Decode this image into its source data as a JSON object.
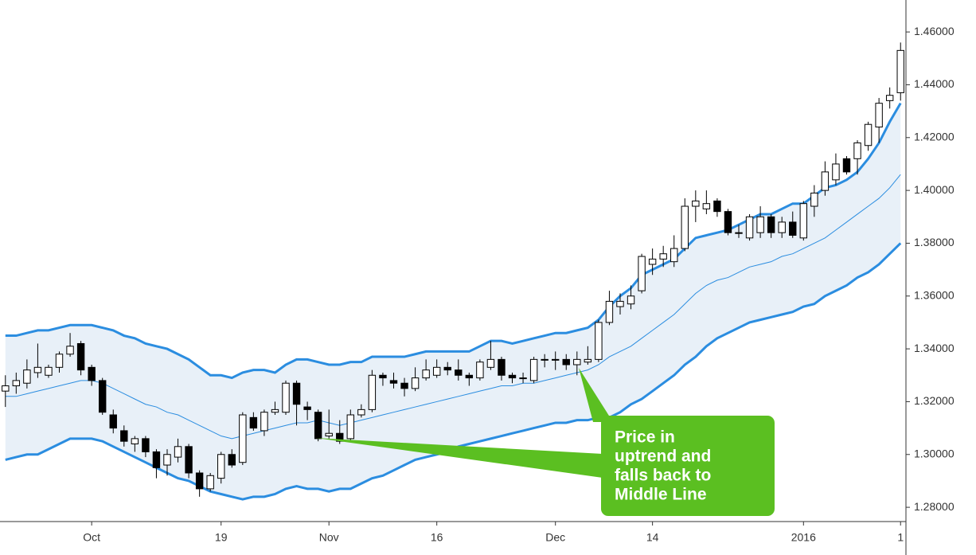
{
  "chart_data": {
    "type": "candlestick",
    "categories": [
      null,
      null,
      null,
      null,
      null,
      null,
      null,
      null,
      "Oct",
      null,
      null,
      null,
      null,
      null,
      null,
      null,
      null,
      null,
      null,
      null,
      "19",
      null,
      null,
      null,
      null,
      null,
      null,
      null,
      null,
      null,
      "Nov",
      null,
      null,
      null,
      null,
      null,
      null,
      null,
      null,
      null,
      "16",
      null,
      null,
      null,
      null,
      null,
      null,
      null,
      null,
      null,
      null,
      "Dec",
      null,
      null,
      null,
      null,
      null,
      null,
      null,
      null,
      "14",
      null,
      null,
      null,
      null,
      null,
      null,
      null,
      null,
      null,
      null,
      null,
      null,
      null,
      "2016",
      null,
      null,
      null,
      null,
      null,
      null,
      null,
      null,
      "1"
    ],
    "candles": {
      "open": [
        1.324,
        1.326,
        1.327,
        1.331,
        1.33,
        1.333,
        1.338,
        1.342,
        1.333,
        1.328,
        1.315,
        1.309,
        1.304,
        1.306,
        1.301,
        1.296,
        1.299,
        1.303,
        1.293,
        1.287,
        1.291,
        1.3,
        1.297,
        1.314,
        1.309,
        1.316,
        1.316,
        1.327,
        1.318,
        1.316,
        1.307,
        1.308,
        1.306,
        1.315,
        1.317,
        1.33,
        1.328,
        1.327,
        1.325,
        1.329,
        1.33,
        1.333,
        1.332,
        1.33,
        1.329,
        1.333,
        1.336,
        1.33,
        1.329,
        1.328,
        1.336,
        1.336,
        1.336,
        1.334,
        1.335,
        1.336,
        1.35,
        1.356,
        1.357,
        1.362,
        1.372,
        1.374,
        1.373,
        1.378,
        1.394,
        1.393,
        1.396,
        1.392,
        1.384,
        1.382,
        1.384,
        1.39,
        1.384,
        1.388,
        1.382,
        1.394,
        1.4,
        1.404,
        1.412,
        1.412,
        1.417,
        1.424,
        1.434,
        1.437
      ],
      "high": [
        1.33,
        1.331,
        1.336,
        1.342,
        1.334,
        1.339,
        1.346,
        1.343,
        1.334,
        1.329,
        1.317,
        1.311,
        1.307,
        1.307,
        1.302,
        1.302,
        1.306,
        1.304,
        1.294,
        1.293,
        1.301,
        1.302,
        1.316,
        1.316,
        1.317,
        1.32,
        1.328,
        1.328,
        1.32,
        1.317,
        1.317,
        1.313,
        1.317,
        1.319,
        1.332,
        1.331,
        1.331,
        1.329,
        1.333,
        1.336,
        1.336,
        1.335,
        1.336,
        1.331,
        1.336,
        1.343,
        1.337,
        1.331,
        1.331,
        1.337,
        1.338,
        1.339,
        1.338,
        1.339,
        1.341,
        1.351,
        1.362,
        1.361,
        1.364,
        1.376,
        1.378,
        1.379,
        1.383,
        1.397,
        1.4,
        1.4,
        1.397,
        1.393,
        1.387,
        1.391,
        1.394,
        1.391,
        1.39,
        1.392,
        1.396,
        1.402,
        1.411,
        1.414,
        1.413,
        1.419,
        1.426,
        1.435,
        1.439,
        1.456
      ],
      "low": [
        1.318,
        1.323,
        1.325,
        1.329,
        1.329,
        1.331,
        1.337,
        1.33,
        1.326,
        1.315,
        1.308,
        1.303,
        1.301,
        1.299,
        1.291,
        1.292,
        1.297,
        1.291,
        1.284,
        1.286,
        1.289,
        1.295,
        1.296,
        1.309,
        1.307,
        1.315,
        1.315,
        1.311,
        1.313,
        1.305,
        1.306,
        1.304,
        1.305,
        1.314,
        1.316,
        1.326,
        1.325,
        1.322,
        1.324,
        1.328,
        1.329,
        1.33,
        1.328,
        1.326,
        1.328,
        1.332,
        1.328,
        1.327,
        1.327,
        1.327,
        1.333,
        1.332,
        1.332,
        1.33,
        1.334,
        1.335,
        1.349,
        1.353,
        1.355,
        1.361,
        1.368,
        1.371,
        1.371,
        1.377,
        1.388,
        1.391,
        1.39,
        1.383,
        1.382,
        1.381,
        1.382,
        1.382,
        1.382,
        1.382,
        1.381,
        1.39,
        1.398,
        1.402,
        1.406,
        1.406,
        1.415,
        1.418,
        1.431,
        1.434
      ],
      "close": [
        1.326,
        1.328,
        1.332,
        1.333,
        1.333,
        1.338,
        1.341,
        1.332,
        1.328,
        1.316,
        1.31,
        1.305,
        1.306,
        1.301,
        1.295,
        1.3,
        1.303,
        1.293,
        1.287,
        1.292,
        1.3,
        1.296,
        1.315,
        1.31,
        1.316,
        1.317,
        1.327,
        1.319,
        1.317,
        1.306,
        1.308,
        1.305,
        1.315,
        1.317,
        1.33,
        1.329,
        1.327,
        1.325,
        1.329,
        1.332,
        1.333,
        1.332,
        1.33,
        1.329,
        1.335,
        1.336,
        1.33,
        1.329,
        1.329,
        1.336,
        1.336,
        1.336,
        1.334,
        1.336,
        1.336,
        1.35,
        1.358,
        1.358,
        1.36,
        1.375,
        1.374,
        1.376,
        1.378,
        1.394,
        1.396,
        1.395,
        1.392,
        1.384,
        1.384,
        1.39,
        1.39,
        1.384,
        1.388,
        1.383,
        1.395,
        1.399,
        1.407,
        1.41,
        1.407,
        1.418,
        1.425,
        1.433,
        1.436,
        1.453
      ],
      "up_color": "#ffffff",
      "down_color": "#000000",
      "edge_color": "#000000"
    },
    "series": [
      {
        "color": "#2b8de0",
        "width": 3,
        "values": [
          1.345,
          1.345,
          1.346,
          1.347,
          1.347,
          1.348,
          1.349,
          1.349,
          1.349,
          1.348,
          1.347,
          1.345,
          1.344,
          1.342,
          1.341,
          1.34,
          1.338,
          1.336,
          1.333,
          1.33,
          1.33,
          1.329,
          1.331,
          1.332,
          1.332,
          1.331,
          1.334,
          1.336,
          1.336,
          1.335,
          1.334,
          1.334,
          1.335,
          1.335,
          1.337,
          1.337,
          1.337,
          1.337,
          1.338,
          1.339,
          1.339,
          1.339,
          1.339,
          1.339,
          1.341,
          1.343,
          1.343,
          1.342,
          1.343,
          1.344,
          1.345,
          1.346,
          1.346,
          1.347,
          1.348,
          1.351,
          1.356,
          1.36,
          1.363,
          1.368,
          1.37,
          1.372,
          1.374,
          1.378,
          1.382,
          1.383,
          1.384,
          1.385,
          1.387,
          1.389,
          1.391,
          1.391,
          1.393,
          1.395,
          1.395,
          1.398,
          1.401,
          1.402,
          1.404,
          1.407,
          1.412,
          1.418,
          1.426,
          1.433
        ]
      },
      {
        "color": "#2b8de0",
        "width": 1,
        "values": [
          1.322,
          1.322,
          1.323,
          1.324,
          1.325,
          1.326,
          1.327,
          1.328,
          1.328,
          1.327,
          1.325,
          1.323,
          1.321,
          1.319,
          1.318,
          1.316,
          1.315,
          1.313,
          1.311,
          1.309,
          1.307,
          1.306,
          1.307,
          1.308,
          1.309,
          1.31,
          1.311,
          1.312,
          1.312,
          1.313,
          1.312,
          1.311,
          1.312,
          1.313,
          1.314,
          1.315,
          1.316,
          1.317,
          1.318,
          1.319,
          1.32,
          1.321,
          1.322,
          1.323,
          1.324,
          1.325,
          1.326,
          1.326,
          1.327,
          1.327,
          1.328,
          1.329,
          1.33,
          1.331,
          1.332,
          1.334,
          1.337,
          1.339,
          1.341,
          1.344,
          1.347,
          1.35,
          1.353,
          1.357,
          1.361,
          1.364,
          1.366,
          1.367,
          1.369,
          1.371,
          1.372,
          1.373,
          1.375,
          1.376,
          1.378,
          1.38,
          1.382,
          1.385,
          1.388,
          1.391,
          1.394,
          1.397,
          1.401,
          1.406
        ]
      },
      {
        "color": "#2b8de0",
        "width": 3,
        "values": [
          1.298,
          1.299,
          1.3,
          1.3,
          1.302,
          1.304,
          1.306,
          1.306,
          1.306,
          1.305,
          1.303,
          1.301,
          1.299,
          1.297,
          1.295,
          1.293,
          1.291,
          1.29,
          1.288,
          1.286,
          1.285,
          1.284,
          1.283,
          1.284,
          1.284,
          1.285,
          1.287,
          1.288,
          1.287,
          1.287,
          1.286,
          1.287,
          1.287,
          1.289,
          1.291,
          1.292,
          1.294,
          1.296,
          1.298,
          1.299,
          1.3,
          1.301,
          1.303,
          1.304,
          1.305,
          1.306,
          1.307,
          1.308,
          1.309,
          1.31,
          1.311,
          1.312,
          1.312,
          1.313,
          1.313,
          1.314,
          1.314,
          1.316,
          1.319,
          1.321,
          1.324,
          1.327,
          1.33,
          1.334,
          1.337,
          1.341,
          1.344,
          1.346,
          1.348,
          1.35,
          1.351,
          1.352,
          1.353,
          1.354,
          1.356,
          1.357,
          1.36,
          1.362,
          1.364,
          1.367,
          1.369,
          1.372,
          1.376,
          1.38
        ]
      }
    ],
    "band_fill": "#e8f0f8",
    "ylim": [
      1.2746,
      1.4721
    ],
    "yticks": [
      {
        "value": 1.28,
        "label": "1.28000"
      },
      {
        "value": 1.3,
        "label": "1.30000"
      },
      {
        "value": 1.32,
        "label": "1.32000"
      },
      {
        "value": 1.34,
        "label": "1.34000"
      },
      {
        "value": 1.36,
        "label": "1.36000"
      },
      {
        "value": 1.38,
        "label": "1.38000"
      },
      {
        "value": 1.4,
        "label": "1.40000"
      },
      {
        "value": 1.42,
        "label": "1.42000"
      },
      {
        "value": 1.44,
        "label": "1.44000"
      },
      {
        "value": 1.46,
        "label": "1.46000"
      }
    ],
    "annotation": {
      "lines": [
        "Price in",
        "uptrend and",
        "falls back to",
        "Middle Line"
      ],
      "color": "#5bbf21"
    }
  }
}
